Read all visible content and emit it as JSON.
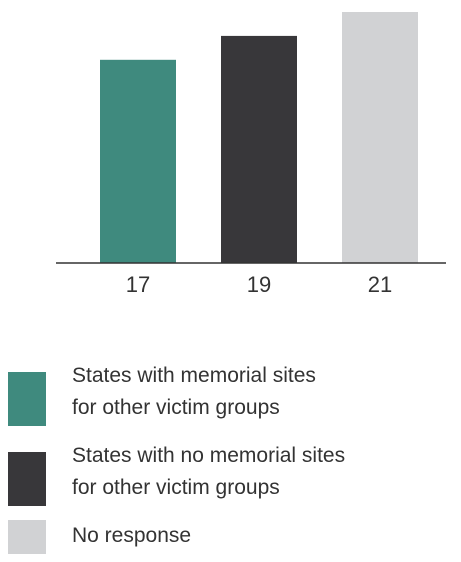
{
  "chart_data": {
    "type": "bar",
    "categories": [
      "17",
      "19",
      "21"
    ],
    "values": [
      17,
      19,
      21
    ],
    "colors": [
      "#3f8a7e",
      "#38373a",
      "#d1d2d4"
    ],
    "ylim": [
      0,
      21
    ],
    "grid": false,
    "legend_position": "bottom"
  },
  "legend": {
    "items": [
      {
        "label": "States with memorial sites\nfor other victim groups",
        "color": "#3f8a7e"
      },
      {
        "label": "States with no memorial sites\nfor other victim groups",
        "color": "#38373a"
      },
      {
        "label": "No response",
        "color": "#d1d2d4"
      }
    ]
  }
}
